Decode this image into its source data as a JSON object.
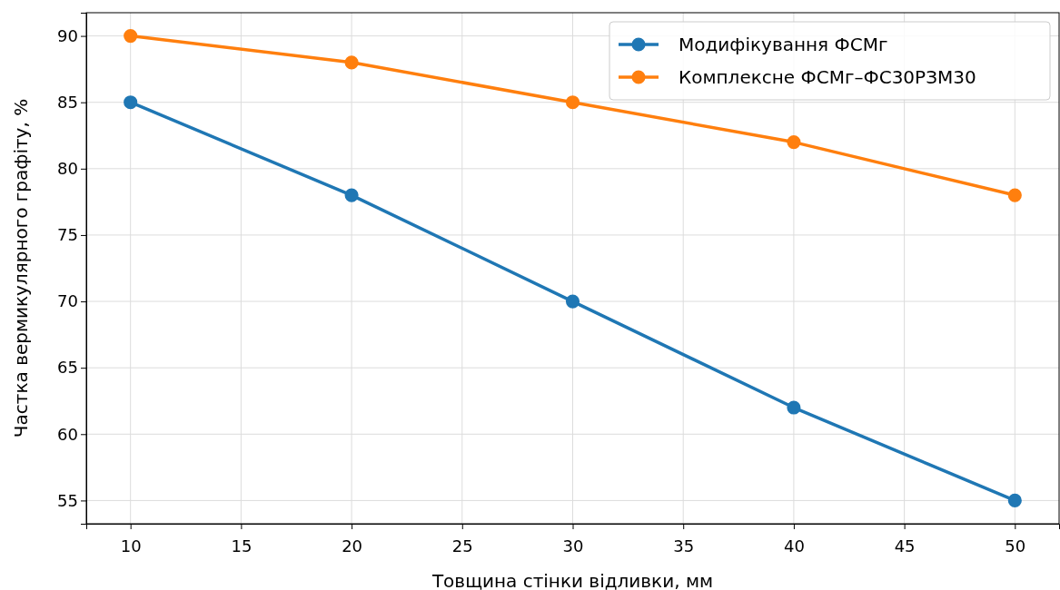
{
  "chart_data": {
    "type": "line",
    "xlabel": "Товщина стінки відливки, мм",
    "ylabel": "Частка вермикулярного графіту, %",
    "x": [
      10,
      20,
      30,
      40,
      50
    ],
    "series": [
      {
        "name": "Модифікування ФСМг",
        "color": "#1f77b4",
        "values": [
          85,
          78,
          70,
          62,
          55
        ]
      },
      {
        "name": "Комплексне ФСМг–ФС30РЗМ30",
        "color": "#ff7f0e",
        "values": [
          90,
          88,
          85,
          82,
          78
        ]
      }
    ],
    "xlim": [
      8,
      52
    ],
    "xticks": [
      10,
      15,
      20,
      25,
      30,
      35,
      40,
      45,
      50
    ],
    "ylim": [
      53.25,
      91.75
    ],
    "yticks": [
      55,
      60,
      65,
      70,
      75,
      80,
      85,
      90
    ],
    "grid": true,
    "legend": "top right",
    "marker": "circle",
    "line_style": "solid"
  }
}
